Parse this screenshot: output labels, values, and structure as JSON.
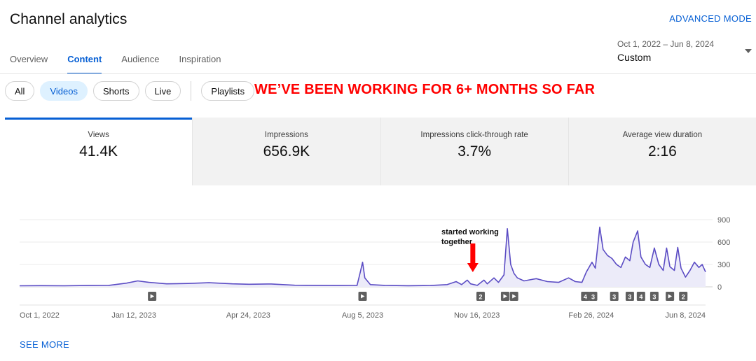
{
  "header": {
    "title": "Channel analytics",
    "advanced_mode": "ADVANCED MODE"
  },
  "tabs": [
    {
      "label": "Overview",
      "active": false
    },
    {
      "label": "Content",
      "active": true
    },
    {
      "label": "Audience",
      "active": false
    },
    {
      "label": "Inspiration",
      "active": false
    }
  ],
  "date_range": {
    "range": "Oct 1, 2022 – Jun 8, 2024",
    "preset": "Custom",
    "icon": "caret-down-icon"
  },
  "chips": [
    {
      "label": "All",
      "active": false
    },
    {
      "label": "Videos",
      "active": true
    },
    {
      "label": "Shorts",
      "active": false
    },
    {
      "label": "Live",
      "active": false
    }
  ],
  "playlists_chip": "Playlists",
  "annotation_banner": "WE’VE BEEN WORKING FOR 6+ MONTHS SO FAR",
  "metrics": [
    {
      "label": "Views",
      "value": "41.4K",
      "active": true
    },
    {
      "label": "Impressions",
      "value": "656.9K",
      "active": false
    },
    {
      "label": "Impressions click-through rate",
      "value": "3.7%",
      "active": false
    },
    {
      "label": "Average view duration",
      "value": "2:16",
      "active": false
    }
  ],
  "chart_data": {
    "type": "area",
    "x_ticks": [
      "Oct 1, 2022",
      "Jan 12, 2023",
      "Apr 24, 2023",
      "Aug 5, 2023",
      "Nov 16, 2023",
      "Feb 26, 2024",
      "Jun 8, 2024"
    ],
    "y_ticks": [
      0,
      300,
      600,
      900
    ],
    "ylim": [
      0,
      900
    ],
    "series": [
      {
        "line_color": "#5b4cc4",
        "fill_color": "#ecebf9",
        "points": [
          [
            "2022-10-01",
            14
          ],
          [
            "2022-10-20",
            16
          ],
          [
            "2022-11-10",
            14
          ],
          [
            "2022-12-01",
            18
          ],
          [
            "2022-12-20",
            20
          ],
          [
            "2023-01-05",
            50
          ],
          [
            "2023-01-15",
            80
          ],
          [
            "2023-01-25",
            60
          ],
          [
            "2023-02-10",
            40
          ],
          [
            "2023-03-01",
            45
          ],
          [
            "2023-03-20",
            55
          ],
          [
            "2023-04-10",
            40
          ],
          [
            "2023-04-25",
            35
          ],
          [
            "2023-05-15",
            38
          ],
          [
            "2023-06-05",
            22
          ],
          [
            "2023-06-25",
            20
          ],
          [
            "2023-07-15",
            18
          ],
          [
            "2023-07-31",
            20
          ],
          [
            "2023-08-03",
            200
          ],
          [
            "2023-08-05",
            330
          ],
          [
            "2023-08-07",
            120
          ],
          [
            "2023-08-12",
            30
          ],
          [
            "2023-08-25",
            20
          ],
          [
            "2023-09-15",
            15
          ],
          [
            "2023-10-05",
            18
          ],
          [
            "2023-10-20",
            30
          ],
          [
            "2023-10-28",
            70
          ],
          [
            "2023-11-02",
            30
          ],
          [
            "2023-11-07",
            90
          ],
          [
            "2023-11-10",
            40
          ],
          [
            "2023-11-16",
            20
          ],
          [
            "2023-11-22",
            90
          ],
          [
            "2023-11-25",
            40
          ],
          [
            "2023-12-01",
            120
          ],
          [
            "2023-12-05",
            60
          ],
          [
            "2023-12-10",
            160
          ],
          [
            "2023-12-13",
            780
          ],
          [
            "2023-12-16",
            300
          ],
          [
            "2023-12-19",
            180
          ],
          [
            "2023-12-22",
            120
          ],
          [
            "2023-12-28",
            80
          ],
          [
            "2024-01-08",
            110
          ],
          [
            "2024-01-18",
            70
          ],
          [
            "2024-01-28",
            60
          ],
          [
            "2024-02-06",
            120
          ],
          [
            "2024-02-12",
            70
          ],
          [
            "2024-02-18",
            60
          ],
          [
            "2024-02-22",
            200
          ],
          [
            "2024-02-27",
            330
          ],
          [
            "2024-03-01",
            250
          ],
          [
            "2024-03-05",
            800
          ],
          [
            "2024-03-08",
            500
          ],
          [
            "2024-03-12",
            420
          ],
          [
            "2024-03-16",
            380
          ],
          [
            "2024-03-20",
            300
          ],
          [
            "2024-03-24",
            260
          ],
          [
            "2024-03-28",
            400
          ],
          [
            "2024-04-01",
            350
          ],
          [
            "2024-04-04",
            600
          ],
          [
            "2024-04-08",
            750
          ],
          [
            "2024-04-11",
            400
          ],
          [
            "2024-04-15",
            300
          ],
          [
            "2024-04-19",
            260
          ],
          [
            "2024-04-23",
            520
          ],
          [
            "2024-04-27",
            300
          ],
          [
            "2024-05-01",
            220
          ],
          [
            "2024-05-04",
            520
          ],
          [
            "2024-05-07",
            270
          ],
          [
            "2024-05-11",
            220
          ],
          [
            "2024-05-14",
            530
          ],
          [
            "2024-05-17",
            250
          ],
          [
            "2024-05-21",
            130
          ],
          [
            "2024-05-25",
            220
          ],
          [
            "2024-05-29",
            330
          ],
          [
            "2024-06-02",
            260
          ],
          [
            "2024-06-05",
            300
          ],
          [
            "2024-06-08",
            200
          ]
        ]
      }
    ],
    "video_markers": [
      {
        "date": "2023-01-28",
        "label": "▶"
      },
      {
        "date": "2023-08-05",
        "label": "▶"
      },
      {
        "date": "2023-11-19",
        "label": "2"
      },
      {
        "date": "2023-12-11",
        "label": "▶"
      },
      {
        "date": "2023-12-19",
        "label": "▶"
      },
      {
        "date": "2024-02-21",
        "label": "4"
      },
      {
        "date": "2024-02-28",
        "label": "3"
      },
      {
        "date": "2024-03-18",
        "label": "3"
      },
      {
        "date": "2024-04-01",
        "label": "3"
      },
      {
        "date": "2024-04-11",
        "label": "4"
      },
      {
        "date": "2024-04-23",
        "label": "3"
      },
      {
        "date": "2024-05-07",
        "label": "▶"
      },
      {
        "date": "2024-05-19",
        "label": "2"
      }
    ],
    "annotation": {
      "text_line1": "started working",
      "text_line2": "together",
      "date": "2023-11-12",
      "color": "#ff0000"
    }
  },
  "see_more": "SEE MORE"
}
